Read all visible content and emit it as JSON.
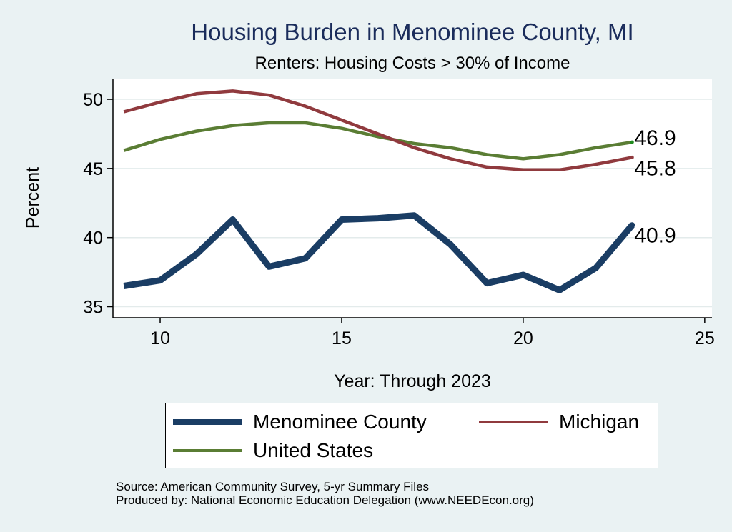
{
  "chart_data": {
    "type": "line",
    "title": "Housing Burden in Menominee County, MI",
    "subtitle": "Renters: Housing Costs > 30% of Income",
    "xlabel": "Year: Through 2023",
    "ylabel": "Percent",
    "xlim": [
      8.7,
      25.2
    ],
    "ylim": [
      34.2,
      51.5
    ],
    "xticks": [
      10,
      15,
      20,
      25
    ],
    "yticks": [
      35,
      40,
      45,
      50
    ],
    "grid": true,
    "series": [
      {
        "name": "Menominee County",
        "color": "#1a3d64",
        "x": [
          9,
          10,
          11,
          12,
          13,
          14,
          15,
          16,
          17,
          18,
          19,
          20,
          21,
          22,
          23
        ],
        "values": [
          36.5,
          36.9,
          38.8,
          41.3,
          37.9,
          38.5,
          41.3,
          41.4,
          41.6,
          39.5,
          36.7,
          37.3,
          36.2,
          37.8,
          40.9
        ],
        "end_label": "40.9"
      },
      {
        "name": "Michigan",
        "color": "#903a3e",
        "x": [
          9,
          10,
          11,
          12,
          13,
          14,
          15,
          16,
          17,
          18,
          19,
          20,
          21,
          22,
          23
        ],
        "values": [
          49.1,
          49.8,
          50.4,
          50.6,
          50.3,
          49.5,
          48.5,
          47.5,
          46.5,
          45.7,
          45.1,
          44.9,
          44.9,
          45.3,
          45.8
        ],
        "end_label": "45.8"
      },
      {
        "name": "United States",
        "color": "#5a7d34",
        "x": [
          9,
          10,
          11,
          12,
          13,
          14,
          15,
          16,
          17,
          18,
          19,
          20,
          21,
          22,
          23
        ],
        "values": [
          46.3,
          47.1,
          47.7,
          48.1,
          48.3,
          48.3,
          47.9,
          47.3,
          46.8,
          46.5,
          46.0,
          45.7,
          46.0,
          46.5,
          46.9
        ],
        "end_label": "46.9"
      }
    ],
    "legend": {
      "position": "bottom",
      "entries": [
        "Menominee County",
        "Michigan",
        "United States"
      ]
    }
  },
  "notes": {
    "source": "Source: American Community Survey, 5-yr Summary Files",
    "produced_by": "Produced by: National Economic Education Delegation (www.NEEDEcon.org)"
  }
}
